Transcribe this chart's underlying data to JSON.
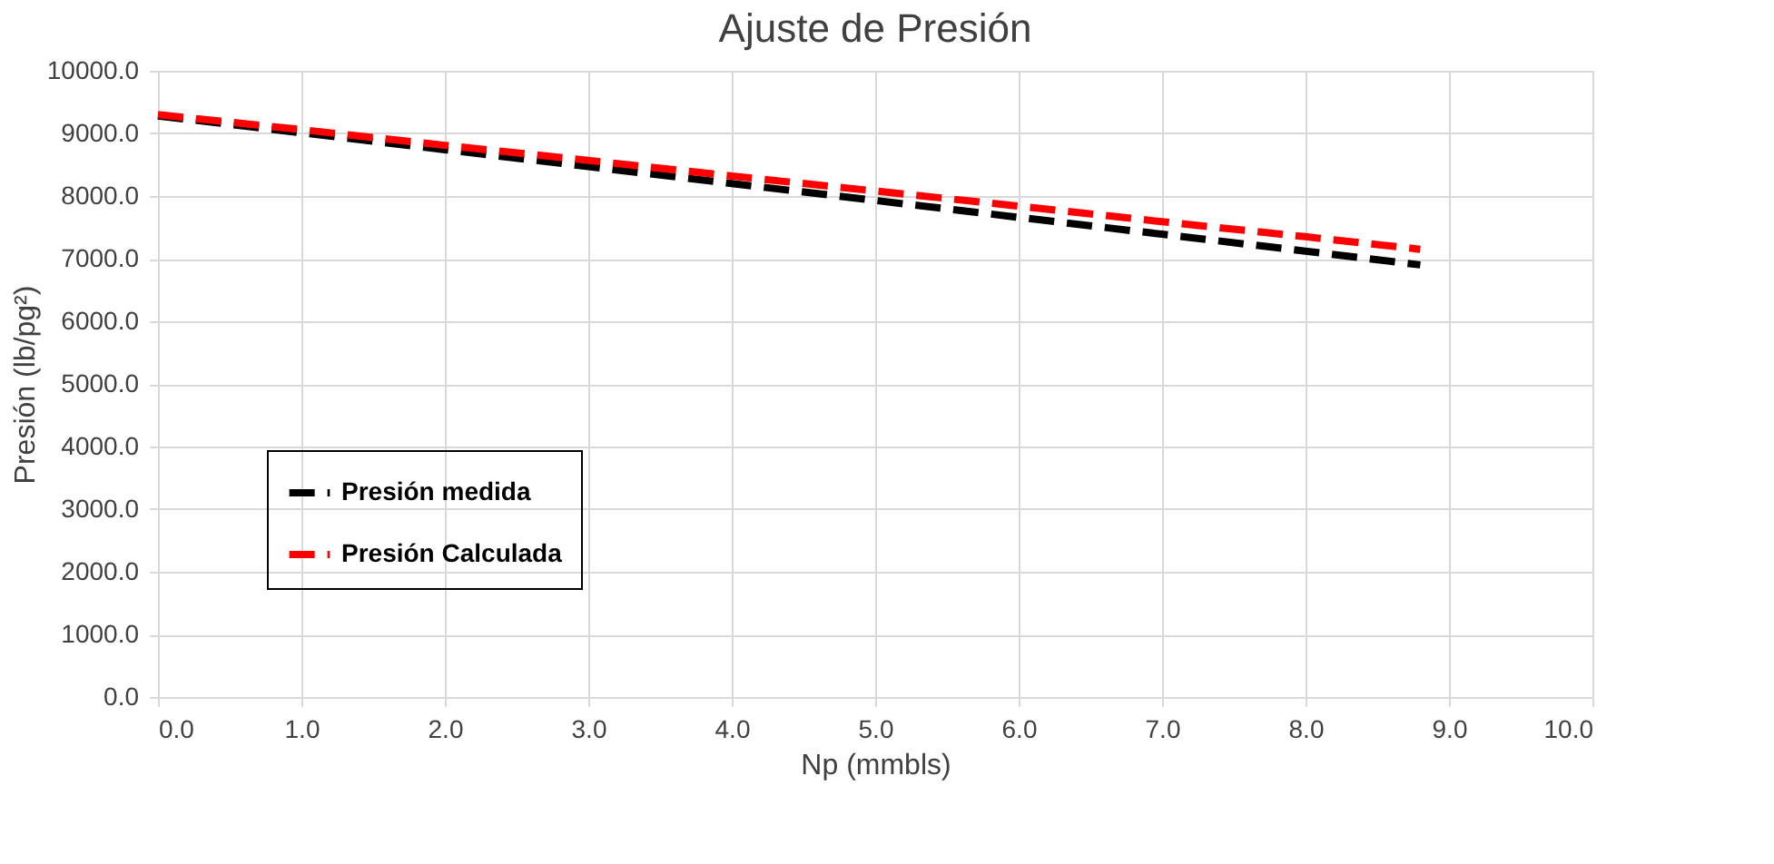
{
  "chart_data": {
    "type": "line",
    "title": "Ajuste de Presión",
    "xlabel": "Np (mmbls)",
    "ylabel": "Presión (lb/pg²)",
    "x": [
      0,
      1,
      2,
      3,
      4,
      5,
      6,
      7,
      8,
      8.8
    ],
    "series": [
      {
        "name": "Presión medida",
        "color": "#000000",
        "values": [
          9280,
          9010,
          8740,
          8470,
          8200,
          7930,
          7660,
          7390,
          7120,
          6900
        ]
      },
      {
        "name": "Presión Calculada",
        "color": "#ff0000",
        "values": [
          9300,
          9060,
          8810,
          8570,
          8320,
          8080,
          7840,
          7590,
          7350,
          7150
        ]
      }
    ],
    "xlim": [
      0,
      10
    ],
    "ylim": [
      0,
      10000
    ],
    "xticks": [
      {
        "value": 0,
        "label": "0.0"
      },
      {
        "value": 1,
        "label": "1.0"
      },
      {
        "value": 2,
        "label": "2.0"
      },
      {
        "value": 3,
        "label": "3.0"
      },
      {
        "value": 4,
        "label": "4.0"
      },
      {
        "value": 5,
        "label": "5.0"
      },
      {
        "value": 6,
        "label": "6.0"
      },
      {
        "value": 7,
        "label": "7.0"
      },
      {
        "value": 8,
        "label": "8.0"
      },
      {
        "value": 9,
        "label": "9.0"
      },
      {
        "value": 10,
        "label": "10.0"
      }
    ],
    "yticks": [
      {
        "value": 0,
        "label": "0.0"
      },
      {
        "value": 1000,
        "label": "1000.0"
      },
      {
        "value": 2000,
        "label": "2000.0"
      },
      {
        "value": 3000,
        "label": "3000.0"
      },
      {
        "value": 4000,
        "label": "4000.0"
      },
      {
        "value": 5000,
        "label": "5000.0"
      },
      {
        "value": 6000,
        "label": "6000.0"
      },
      {
        "value": 7000,
        "label": "7000.0"
      },
      {
        "value": 8000,
        "label": "8000.0"
      },
      {
        "value": 9000,
        "label": "9000.0"
      },
      {
        "value": 10000,
        "label": "10000.0"
      }
    ],
    "grid": true,
    "legend": "bottom left",
    "marker": "none",
    "line_style": "dashed"
  }
}
